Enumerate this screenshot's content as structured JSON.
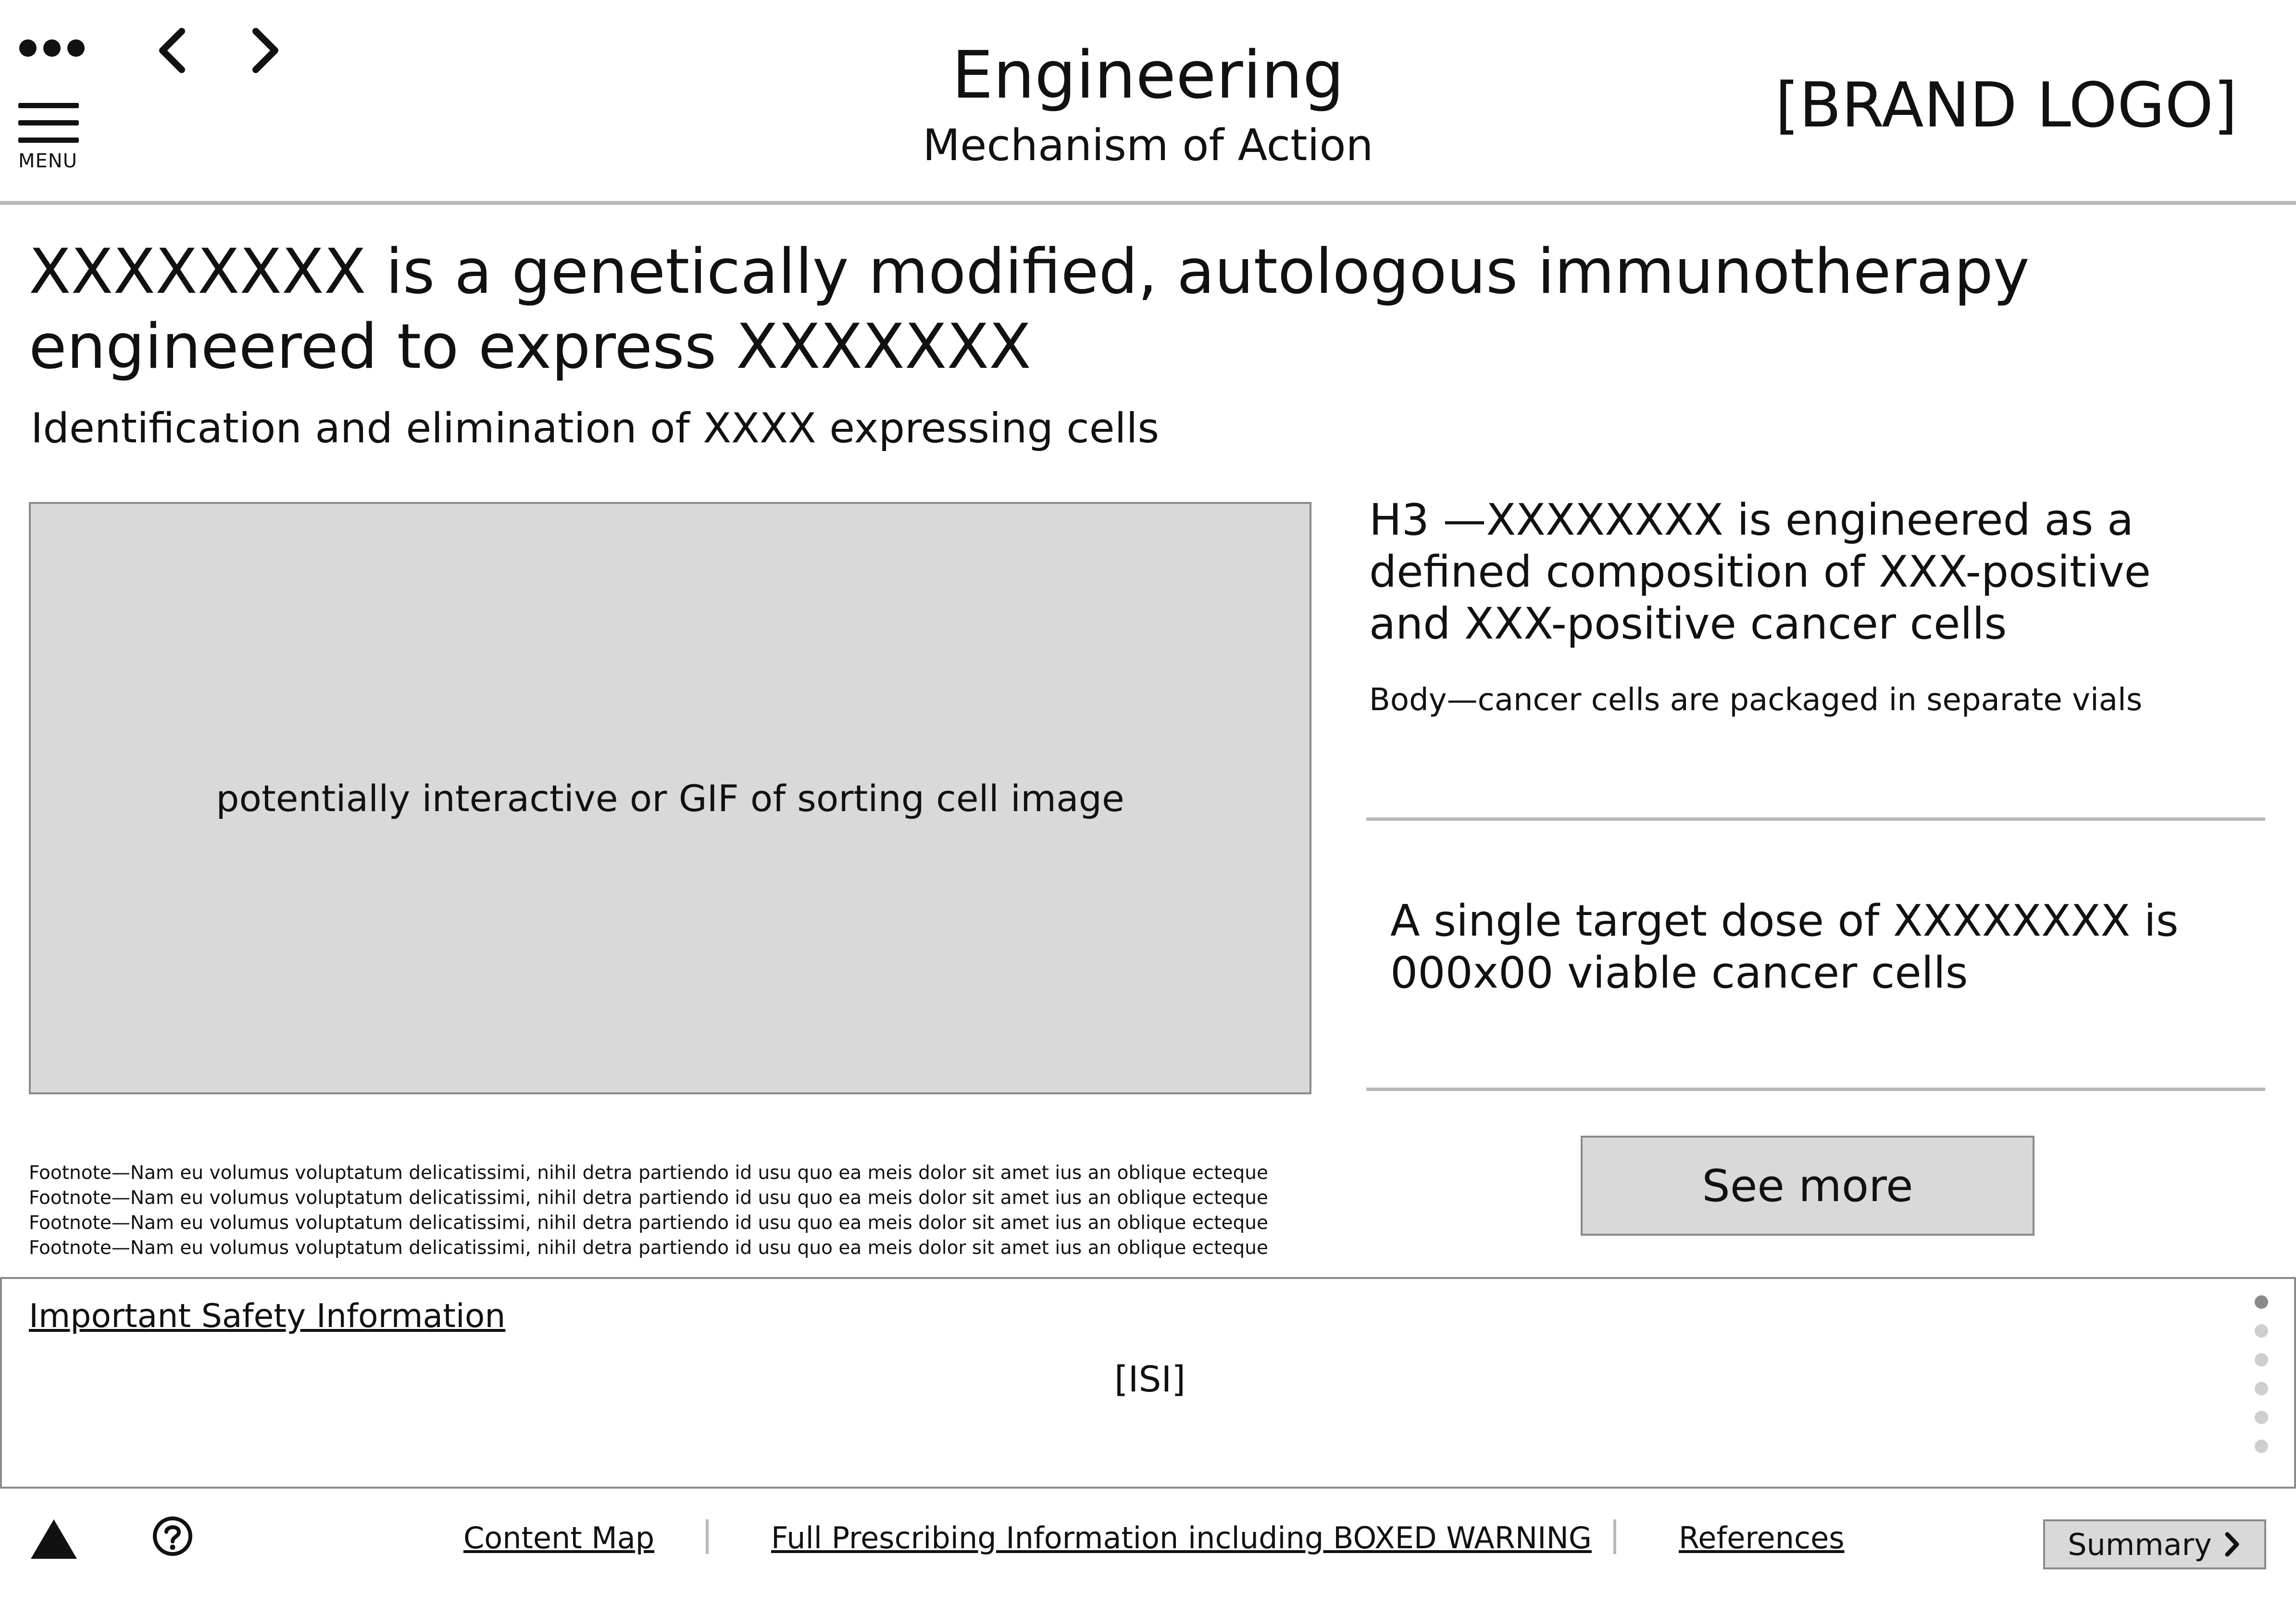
{
  "header": {
    "title": "Engineering",
    "subtitle": "Mechanism of Action",
    "brand_logo": "[BRAND LOGO]",
    "menu_label": "MENU",
    "icons": [
      "more-dots-icon",
      "chevron-left-icon",
      "chevron-right-icon",
      "hamburger-menu-icon"
    ]
  },
  "main": {
    "headline": "XXXXXXXX is a genetically modified, autologous immunotherapy engineered to express XXXXXXX",
    "subheadline": "Identification and elimination of XXXX expressing cells",
    "image_placeholder": "potentially interactive or GIF of sorting cell image",
    "h3": "H3 —XXXXXXXX is engineered as a defined composition of XXX-positive and XXX-positive cancer cells",
    "body": "Body—cancer cells are packaged in separate vials",
    "dose": "A single target dose of XXXXXXXX is 000x00 viable cancer cells",
    "see_more": "See more",
    "footnotes": [
      "Footnote—Nam eu volumus voluptatum delicatissimi, nihil detra partiendo id usu quo ea meis  dolor sit amet ius an oblique ecteque",
      "Footnote—Nam eu volumus voluptatum delicatissimi, nihil detra partiendo id usu quo ea meis  dolor sit amet ius an oblique ecteque",
      "Footnote—Nam eu volumus voluptatum delicatissimi, nihil detra partiendo id usu quo ea meis  dolor sit amet ius an oblique ecteque",
      "Footnote—Nam eu volumus voluptatum delicatissimi, nihil detra partiendo id usu quo ea meis  dolor sit amet ius an oblique ecteque"
    ]
  },
  "isi": {
    "link": "Important Safety Information",
    "text": "[ISI]",
    "pager_total": 6,
    "pager_active": 1
  },
  "footer": {
    "content_map": "Content Map",
    "full_prescribing": "Full Prescribing Information including BOXED WARNING",
    "references": "References",
    "summary": "Summary",
    "icons": [
      "warning-triangle-icon",
      "help-circle-icon",
      "chevron-right-icon"
    ]
  },
  "colors": {
    "placeholder_gray": "#d9d9d9",
    "border_gray": "#8a8a8a",
    "rule_gray": "#b8b8b8",
    "text": "#111111"
  }
}
